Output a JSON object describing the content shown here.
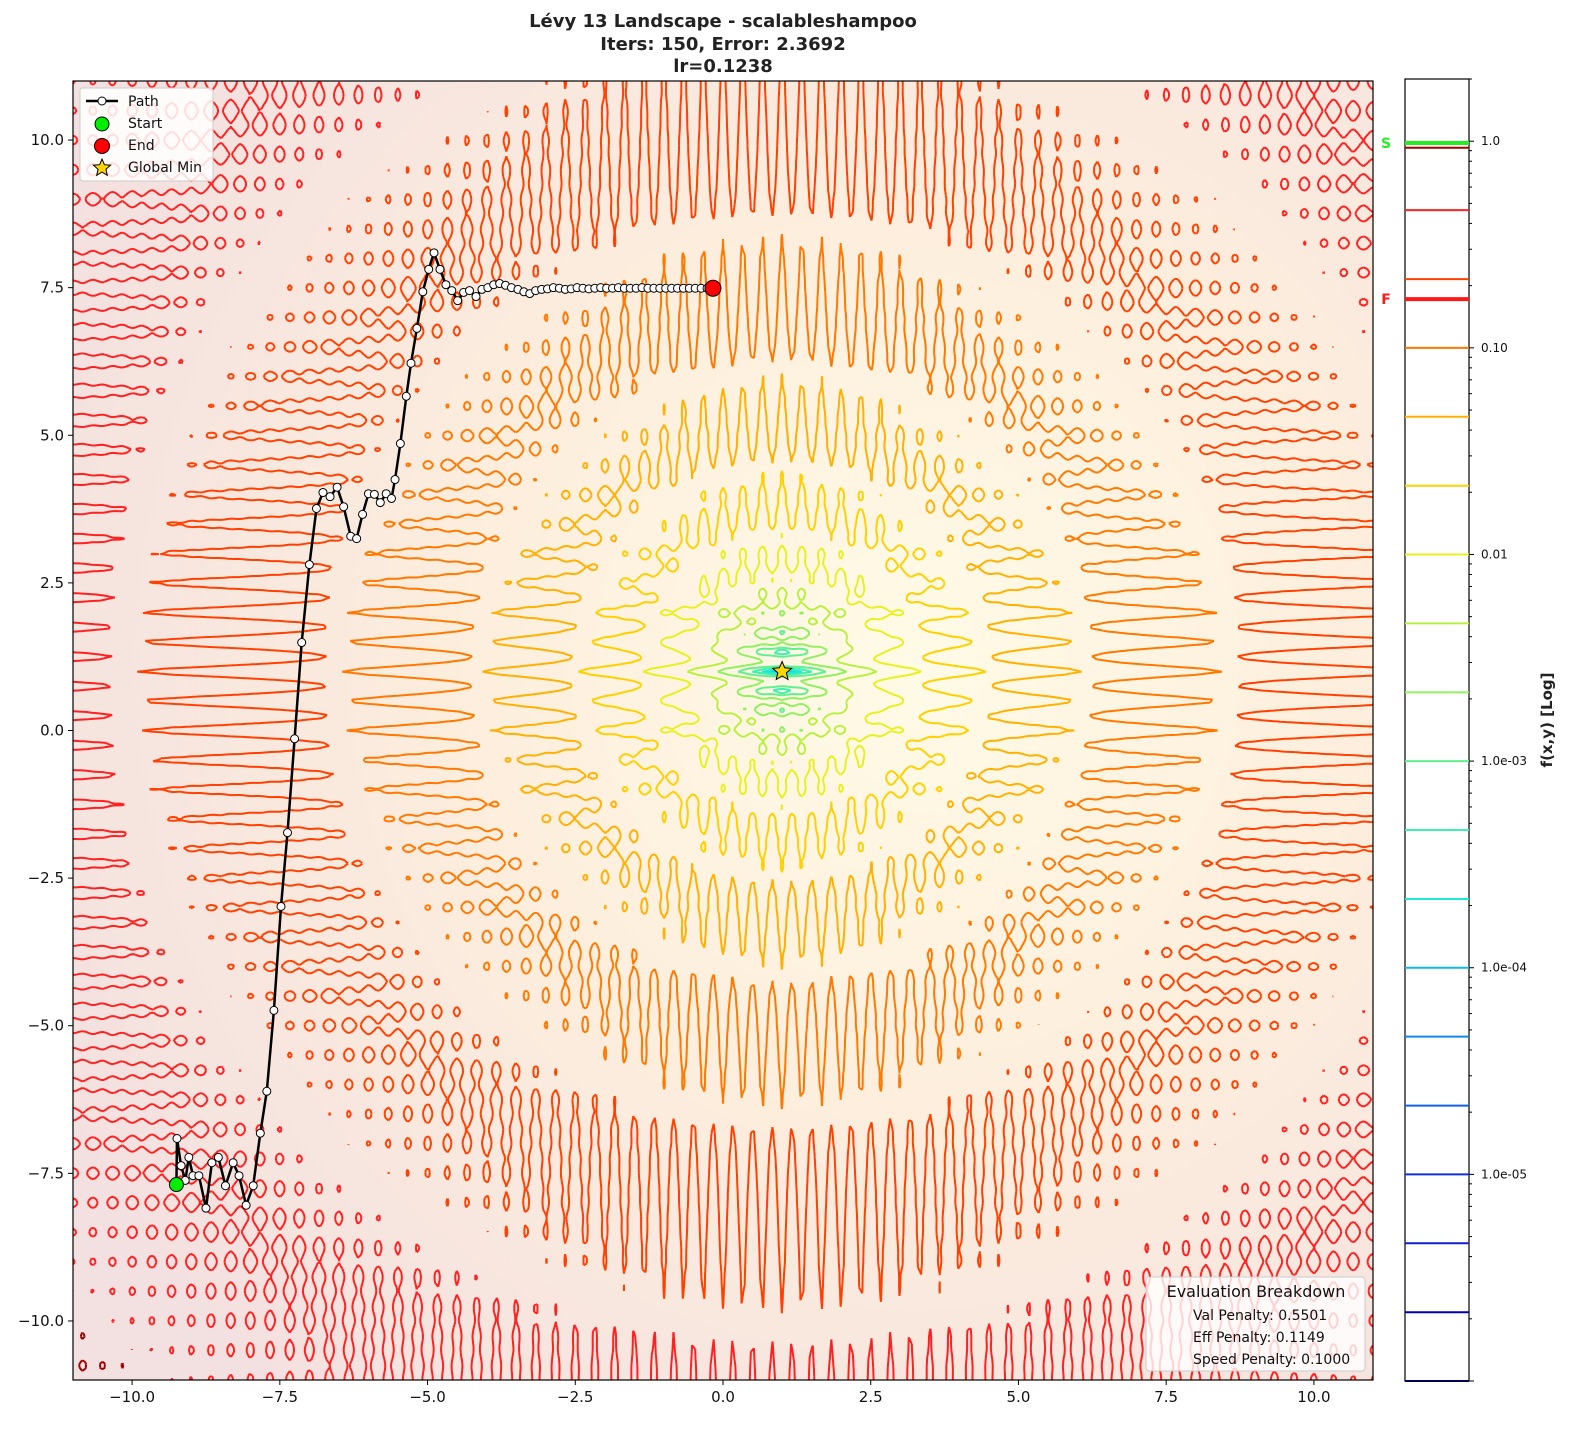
{
  "title_lines": [
    "Lévy 13 Landscape - scalableshampoo",
    "Iters: 150, Error: 2.3692",
    "lr=0.1238"
  ],
  "chart_data": {
    "type": "contour",
    "function": "Lévy 13",
    "xlim": [
      -11,
      11
    ],
    "ylim": [
      -11,
      11
    ],
    "xticks": [
      -10,
      -7.5,
      -5,
      -2.5,
      0,
      2.5,
      5,
      7.5,
      10
    ],
    "xtick_labels": [
      "−10.0",
      "−7.5",
      "−5.0",
      "−2.5",
      "0.0",
      "2.5",
      "5.0",
      "7.5",
      "10.0"
    ],
    "yticks": [
      -10,
      -7.5,
      -5,
      -2.5,
      0,
      2.5,
      5,
      7.5,
      10
    ],
    "ytick_labels": [
      "−10.0",
      "−7.5",
      "−5.0",
      "−2.5",
      "0.0",
      "2.5",
      "5.0",
      "7.5",
      "10.0"
    ],
    "grid": false,
    "path": {
      "name": "Path",
      "x": [
        -9.25,
        -9.24,
        -9.17,
        -9.1,
        -9.04,
        -8.97,
        -8.87,
        -8.75,
        -8.65,
        -8.54,
        -8.42,
        -8.29,
        -8.19,
        -8.07,
        -7.95,
        -7.83,
        -7.72,
        -7.6,
        -7.48,
        -7.37,
        -7.25,
        -7.13,
        -7.0,
        -6.88,
        -6.77,
        -6.65,
        -6.53,
        -6.42,
        -6.3,
        -6.2,
        -6.1,
        -6.0,
        -5.9,
        -5.8,
        -5.7,
        -5.61,
        -5.55,
        -5.46,
        -5.36,
        -5.28,
        -5.18,
        -5.08,
        -4.98,
        -4.89,
        -4.79,
        -4.69,
        -4.59,
        -4.49,
        -4.39,
        -4.29,
        -4.18,
        -4.08,
        -3.98,
        -3.88,
        -3.78,
        -3.68,
        -3.58,
        -3.47,
        -3.37,
        -3.27,
        -3.17,
        -3.07,
        -2.97,
        -2.87,
        -2.77,
        -2.67,
        -2.57,
        -2.47,
        -2.37,
        -2.27,
        -2.17,
        -2.07,
        -1.97,
        -1.87,
        -1.77,
        -1.67,
        -1.57,
        -1.47,
        -1.37,
        -1.27,
        -1.17,
        -1.07,
        -0.97,
        -0.87,
        -0.77,
        -0.67,
        -0.57,
        -0.47,
        -0.37,
        -0.27,
        -0.17
      ],
      "y": [
        -7.69,
        -6.91,
        -7.37,
        -7.62,
        -7.23,
        -7.54,
        -7.54,
        -8.09,
        -7.32,
        -7.23,
        -7.71,
        -7.32,
        -7.54,
        -8.04,
        -7.71,
        -6.82,
        -6.11,
        -4.74,
        -2.98,
        -1.73,
        -0.14,
        1.49,
        2.81,
        3.76,
        4.03,
        3.96,
        4.12,
        3.79,
        3.29,
        3.25,
        3.66,
        4.01,
        4.0,
        3.86,
        4.01,
        3.93,
        4.25,
        4.86,
        5.66,
        6.22,
        6.81,
        7.43,
        7.81,
        8.09,
        7.81,
        7.55,
        7.45,
        7.28,
        7.42,
        7.45,
        7.35,
        7.47,
        7.5,
        7.55,
        7.57,
        7.54,
        7.5,
        7.47,
        7.43,
        7.4,
        7.45,
        7.47,
        7.48,
        7.5,
        7.49,
        7.47,
        7.48,
        7.5,
        7.49,
        7.48,
        7.49,
        7.5,
        7.49,
        7.49,
        7.5,
        7.49,
        7.49,
        7.49,
        7.5,
        7.49,
        7.49,
        7.49,
        7.49,
        7.49,
        7.49,
        7.49,
        7.49,
        7.49,
        7.49,
        7.49,
        7.49
      ]
    },
    "start": {
      "x": -9.25,
      "y": -7.69
    },
    "end": {
      "x": -0.17,
      "y": 7.49
    },
    "global_min": {
      "x": 1,
      "y": 1
    },
    "legend": {
      "placement": "top-left",
      "entries": [
        {
          "label": "Path",
          "marker": "line-circle",
          "color": "#000000"
        },
        {
          "label": "Start",
          "marker": "circle",
          "color": "#00ee00"
        },
        {
          "label": "End",
          "marker": "circle",
          "color": "#ff0000"
        },
        {
          "label": "Global Min",
          "marker": "star",
          "color": "#ffd700"
        }
      ]
    },
    "colorbar": {
      "label": "f(x,y) [Log]",
      "scale": "log",
      "range": [
        1e-06,
        2
      ],
      "ticks": [
        1,
        0.1,
        0.01,
        0.001,
        0.0001,
        1e-05
      ],
      "tick_labels": [
        "1.0",
        "0.10",
        "0.01",
        "1.0e-03",
        "1.0e-04",
        "1.0e-05"
      ],
      "markers": [
        {
          "label": "S",
          "value": 0.98,
          "color": "#22ee22"
        },
        {
          "label": "F",
          "value": 0.172,
          "color": "#ff1a1a"
        }
      ]
    },
    "levels": [
      1e-06,
      2.15e-06,
      4.64e-06,
      1e-05,
      2.15e-05,
      4.64e-05,
      0.0001,
      0.000215,
      0.000464,
      0.001,
      0.00215,
      0.00464,
      0.01,
      0.0215,
      0.0464,
      0.1,
      0.215,
      0.464,
      0.93
    ],
    "level_colors": [
      "#000050",
      "#0000b0",
      "#1020d0",
      "#1030e0",
      "#1060e8",
      "#1088f0",
      "#10b8f0",
      "#20e8d8",
      "#40f0b0",
      "#60f090",
      "#90f060",
      "#b8f040",
      "#e8f020",
      "#ffd000",
      "#ffb000",
      "#ff7800",
      "#ff4000",
      "#ff2020",
      "#a00000"
    ]
  },
  "evaluation": {
    "title": "Evaluation Breakdown",
    "lines": [
      "Val Penalty: 0.5501",
      "Eff Penalty: 0.1149",
      "Speed Penalty: 0.1000"
    ]
  }
}
